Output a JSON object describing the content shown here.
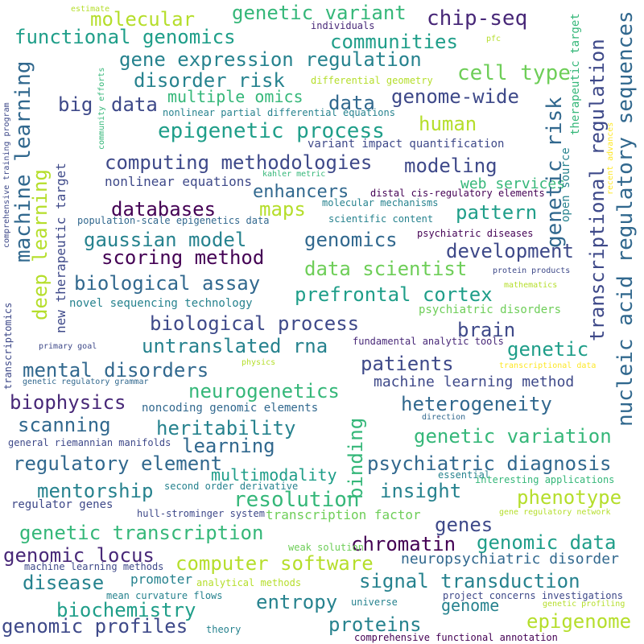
{
  "palette": [
    "#440154",
    "#482878",
    "#3e4989",
    "#31688e",
    "#26828e",
    "#1f9e89",
    "#35b779",
    "#6ece58",
    "#b5de2b",
    "#fde725"
  ],
  "words": [
    {
      "text": "estimate",
      "color": "#b5de2b"
    },
    {
      "text": "molecular",
      "color": "#b5de2b"
    },
    {
      "text": "genetic variant",
      "color": "#35b779"
    },
    {
      "text": "chip-seq",
      "color": "#482878"
    },
    {
      "text": "individuals",
      "color": "#482878"
    },
    {
      "text": "functional genomics",
      "color": "#1f9e89"
    },
    {
      "text": "communities",
      "color": "#1f9e89"
    },
    {
      "text": "pfc",
      "color": "#b5de2b"
    },
    {
      "text": "gene expression regulation",
      "color": "#26828e"
    },
    {
      "text": "cell type",
      "color": "#6ece58"
    },
    {
      "text": "disorder risk",
      "color": "#26828e"
    },
    {
      "text": "differential geometry",
      "color": "#b5de2b"
    },
    {
      "text": "multiple omics",
      "color": "#35b779"
    },
    {
      "text": "genome-wide",
      "color": "#3e4989"
    },
    {
      "text": "big",
      "color": "#3e4989"
    },
    {
      "text": "data",
      "color": "#3e4989"
    },
    {
      "text": "data",
      "color": "#31688e"
    },
    {
      "text": "nonlinear partial differential equations",
      "color": "#26828e"
    },
    {
      "text": "human",
      "color": "#b5de2b"
    },
    {
      "text": "epigenetic process",
      "color": "#1f9e89"
    },
    {
      "text": "variant impact quantification",
      "color": "#3e4989"
    },
    {
      "text": "computing methodologies",
      "color": "#3e4989"
    },
    {
      "text": "modeling",
      "color": "#3e4989"
    },
    {
      "text": "nonlinear equations",
      "color": "#3e4989"
    },
    {
      "text": "kahler metric",
      "color": "#35b779"
    },
    {
      "text": "enhancers",
      "color": "#31688e"
    },
    {
      "text": "web services",
      "color": "#35b779"
    },
    {
      "text": "distal cis-regulatory elements",
      "color": "#440154"
    },
    {
      "text": "databases",
      "color": "#440154"
    },
    {
      "text": "maps",
      "color": "#b5de2b"
    },
    {
      "text": "molecular mechanisms",
      "color": "#26828e"
    },
    {
      "text": "pattern",
      "color": "#1f9e89"
    },
    {
      "text": "population-scale epigenetics data",
      "color": "#31688e"
    },
    {
      "text": "scientific content",
      "color": "#26828e"
    },
    {
      "text": "gaussian model",
      "color": "#26828e"
    },
    {
      "text": "genomics",
      "color": "#31688e"
    },
    {
      "text": "psychiatric diseases",
      "color": "#440154"
    },
    {
      "text": "scoring method",
      "color": "#440154"
    },
    {
      "text": "development",
      "color": "#3e4989"
    },
    {
      "text": "data scientist",
      "color": "#6ece58"
    },
    {
      "text": "protein products",
      "color": "#3e4989"
    },
    {
      "text": "biological assay",
      "color": "#31688e"
    },
    {
      "text": "mathematics",
      "color": "#b5de2b"
    },
    {
      "text": "prefrontal cortex",
      "color": "#1f9e89"
    },
    {
      "text": "novel sequencing technology",
      "color": "#26828e"
    },
    {
      "text": "psychiatric disorders",
      "color": "#6ece58"
    },
    {
      "text": "biological process",
      "color": "#3e4989"
    },
    {
      "text": "brain",
      "color": "#3e4989"
    },
    {
      "text": "untranslated rna",
      "color": "#26828e"
    },
    {
      "text": "fundamental analytic tools",
      "color": "#482878"
    },
    {
      "text": "genetic",
      "color": "#1f9e89"
    },
    {
      "text": "primary goal",
      "color": "#3e4989"
    },
    {
      "text": "patients",
      "color": "#3e4989"
    },
    {
      "text": "physics",
      "color": "#b5de2b"
    },
    {
      "text": "transcriptional data",
      "color": "#fde725"
    },
    {
      "text": "mental disorders",
      "color": "#31688e"
    },
    {
      "text": "neurogenetics",
      "color": "#35b779"
    },
    {
      "text": "machine learning method",
      "color": "#3e4989"
    },
    {
      "text": "genetic regulatory grammar",
      "color": "#31688e"
    },
    {
      "text": "biophysics",
      "color": "#482878"
    },
    {
      "text": "heterogeneity",
      "color": "#31688e"
    },
    {
      "text": "noncoding genomic elements",
      "color": "#31688e"
    },
    {
      "text": "direction",
      "color": "#31688e"
    },
    {
      "text": "scanning",
      "color": "#31688e"
    },
    {
      "text": "heritability",
      "color": "#26828e"
    },
    {
      "text": "genetic variation",
      "color": "#35b779"
    },
    {
      "text": "learning",
      "color": "#31688e"
    },
    {
      "text": "general riemannian manifolds",
      "color": "#3e4989"
    },
    {
      "text": "regulatory element",
      "color": "#31688e"
    },
    {
      "text": "psychiatric diagnosis",
      "color": "#31688e"
    },
    {
      "text": "multimodality",
      "color": "#1f9e89"
    },
    {
      "text": "essential",
      "color": "#26828e"
    },
    {
      "text": "mentorship",
      "color": "#26828e"
    },
    {
      "text": "insight",
      "color": "#26828e"
    },
    {
      "text": "interesting applications",
      "color": "#35b779"
    },
    {
      "text": "second order derivative",
      "color": "#26828e"
    },
    {
      "text": "resolution",
      "color": "#35b779"
    },
    {
      "text": "phenotype",
      "color": "#b5de2b"
    },
    {
      "text": "regulator genes",
      "color": "#3e4989"
    },
    {
      "text": "hull-strominger system",
      "color": "#3e4989"
    },
    {
      "text": "transcription factor",
      "color": "#6ece58"
    },
    {
      "text": "genes",
      "color": "#3e4989"
    },
    {
      "text": "gene regulatory network",
      "color": "#b5de2b"
    },
    {
      "text": "genetic transcription",
      "color": "#35b779"
    },
    {
      "text": "chromatin",
      "color": "#440154"
    },
    {
      "text": "genomic data",
      "color": "#1f9e89"
    },
    {
      "text": "genomic locus",
      "color": "#482878"
    },
    {
      "text": "weak solution",
      "color": "#6ece58"
    },
    {
      "text": "computer software",
      "color": "#b5de2b"
    },
    {
      "text": "neuropsychiatric disorder",
      "color": "#31688e"
    },
    {
      "text": "machine learning methods",
      "color": "#3e4989"
    },
    {
      "text": "disease",
      "color": "#26828e"
    },
    {
      "text": "promoter",
      "color": "#26828e"
    },
    {
      "text": "analytical methods",
      "color": "#b5de2b"
    },
    {
      "text": "signal transduction",
      "color": "#26828e"
    },
    {
      "text": "mean curvature flows",
      "color": "#26828e"
    },
    {
      "text": "entropy",
      "color": "#26828e"
    },
    {
      "text": "biochemistry",
      "color": "#1f9e89"
    },
    {
      "text": "genome",
      "color": "#26828e"
    },
    {
      "text": "project concerns investigations",
      "color": "#3e4989"
    },
    {
      "text": "universe",
      "color": "#26828e"
    },
    {
      "text": "genetic profiling",
      "color": "#b5de2b"
    },
    {
      "text": "genomic profiles",
      "color": "#3e4989"
    },
    {
      "text": "theory",
      "color": "#26828e"
    },
    {
      "text": "proteins",
      "color": "#26828e"
    },
    {
      "text": "comprehensive functional annotation",
      "color": "#440154"
    },
    {
      "text": "epigenome",
      "color": "#b5de2b"
    },
    {
      "text": "machine learning",
      "color": "#31688e"
    },
    {
      "text": "deep learning",
      "color": "#b5de2b"
    },
    {
      "text": "new therapeutic target",
      "color": "#3e4989"
    },
    {
      "text": "transcriptomics",
      "color": "#3e4989"
    },
    {
      "text": "comprehensive training program",
      "color": "#3e4989"
    },
    {
      "text": "community efforts",
      "color": "#35b779"
    },
    {
      "text": "binding",
      "color": "#35b779"
    },
    {
      "text": "genetic risk",
      "color": "#31688e"
    },
    {
      "text": "transcriptional regulation",
      "color": "#3e4989"
    },
    {
      "text": "nucleic acid regulatory sequences",
      "color": "#31688e"
    },
    {
      "text": "therapeutic target",
      "color": "#35b779"
    },
    {
      "text": "open source",
      "color": "#26828e"
    },
    {
      "text": "recent advances",
      "color": "#fde725"
    }
  ]
}
